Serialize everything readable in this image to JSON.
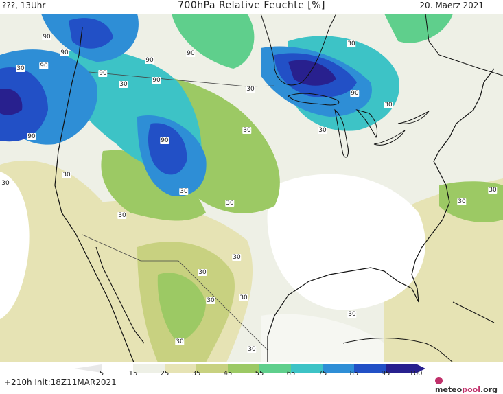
{
  "header": {
    "left": "???, 13Uhr",
    "title": "700hPa Relative Feuchte [%]",
    "right": "20. Maerz 2021"
  },
  "footer": {
    "run": "+210h  Init:18Z11MAR2021",
    "logo_part1": "meteo",
    "logo_part2": "pool",
    "logo_part3": ".org"
  },
  "colorbar": {
    "ticks": [
      "5",
      "15",
      "25",
      "35",
      "45",
      "55",
      "65",
      "75",
      "85",
      "95",
      "100"
    ],
    "colors": [
      "#ffffff",
      "#eef0e6",
      "#e6e3b4",
      "#c8d180",
      "#9cc964",
      "#5fcf8c",
      "#3dc3c6",
      "#2e8ed6",
      "#2250c6",
      "#28208e"
    ]
  },
  "contour_labels": [
    "90",
    "90",
    "90",
    "30",
    "90",
    "90",
    "90",
    "30",
    "90",
    "30",
    "90",
    "30",
    "90",
    "30",
    "90",
    "30",
    "30",
    "30",
    "30",
    "30",
    "30",
    "30",
    "30",
    "30",
    "30",
    "30",
    "30",
    "30",
    "30",
    "30",
    "30"
  ]
}
